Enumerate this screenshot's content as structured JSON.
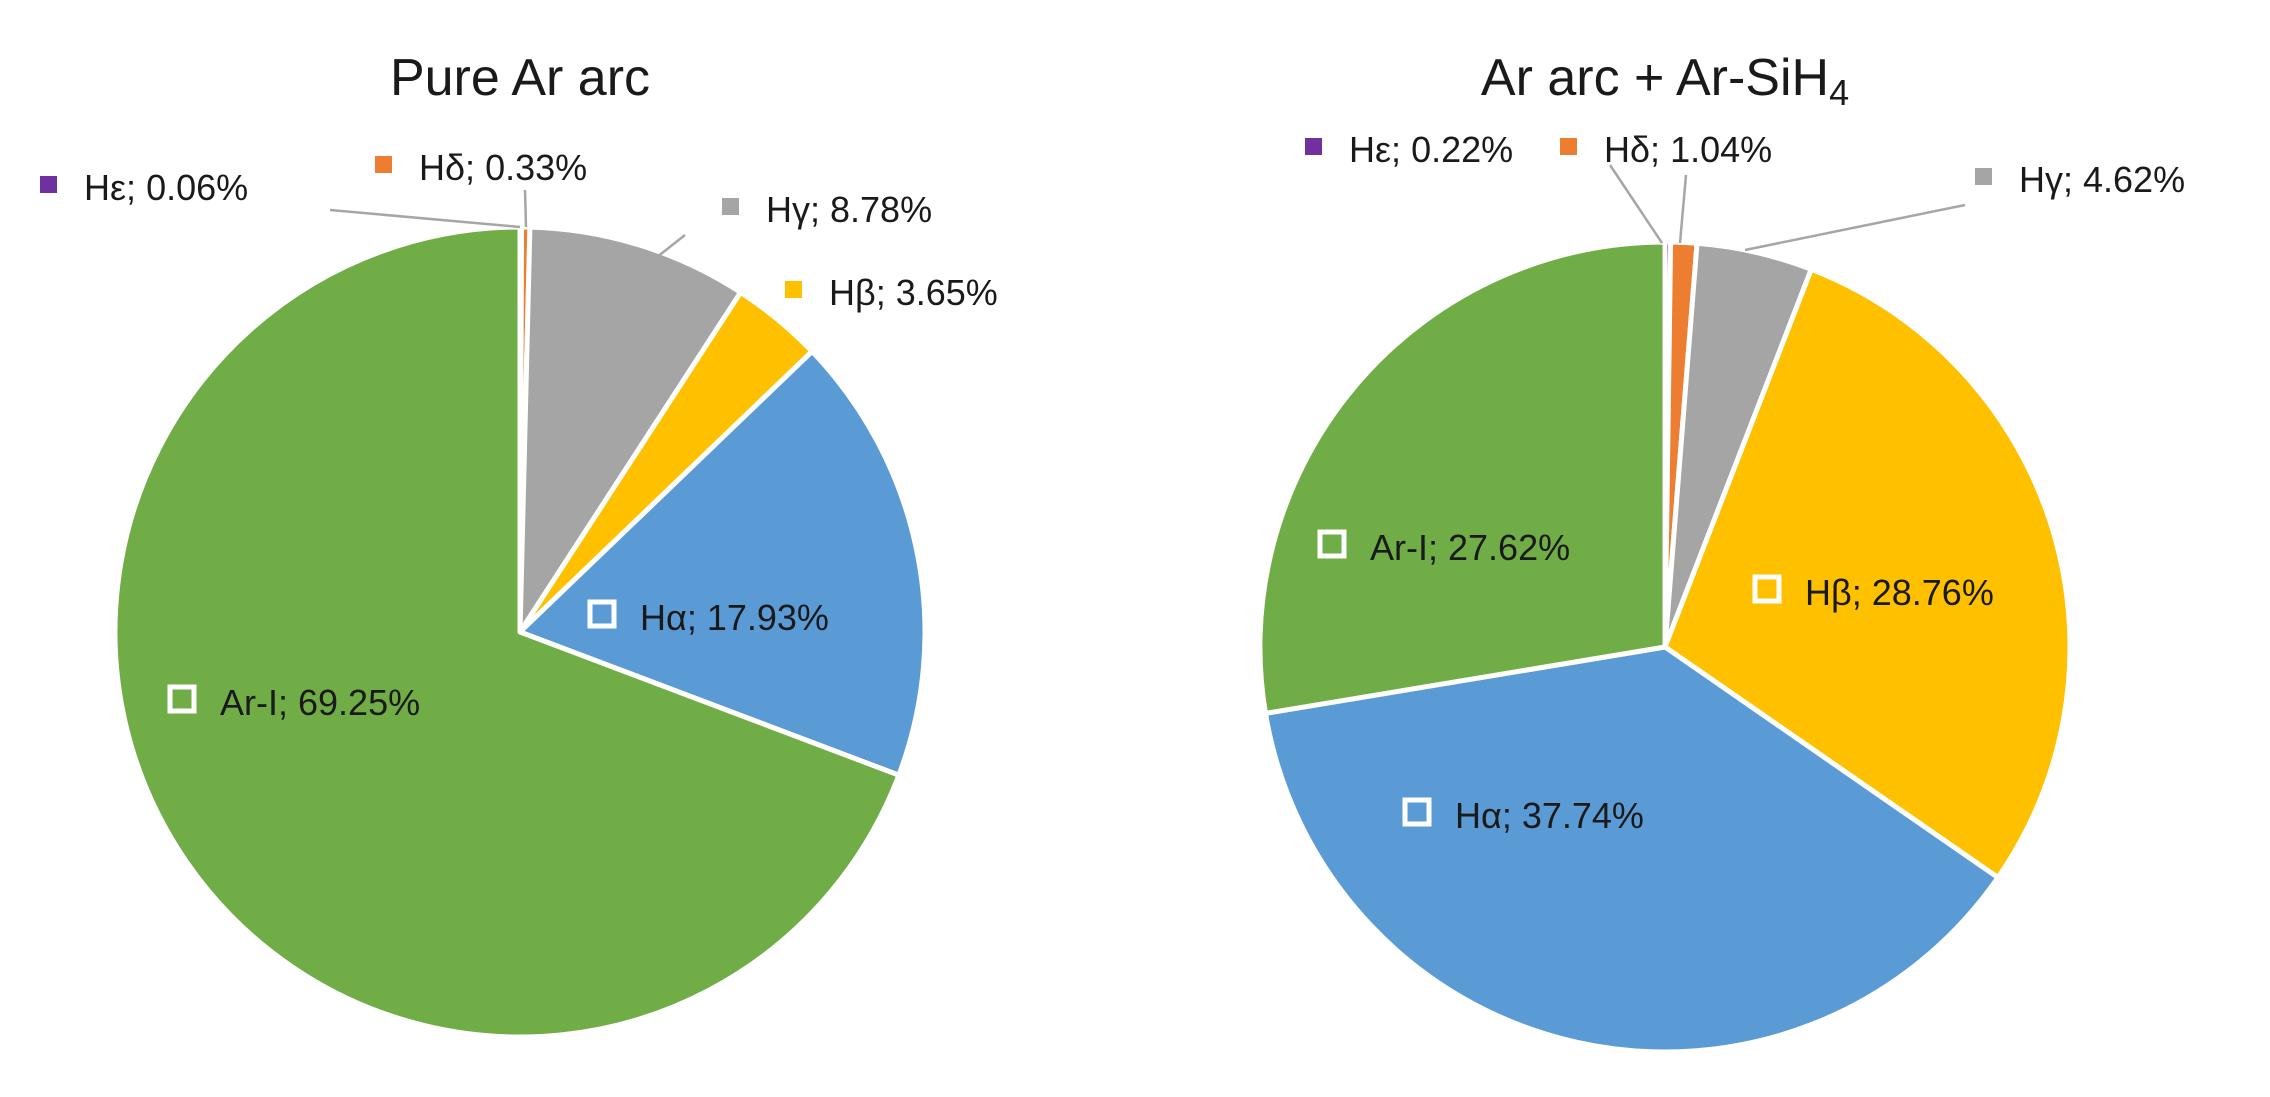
{
  "chart_data": [
    {
      "type": "pie",
      "title": "Pure Ar arc",
      "slices": [
        {
          "label": "Hε",
          "value": 0.06,
          "text": "0.06%",
          "color": "#7030A0"
        },
        {
          "label": "Hδ",
          "value": 0.33,
          "text": "0.33%",
          "color": "#ED7D31"
        },
        {
          "label": "Hγ",
          "value": 8.78,
          "text": "8.78%",
          "color": "#A5A5A5"
        },
        {
          "label": "Hβ",
          "value": 3.65,
          "text": "3.65%",
          "color": "#FFC000"
        },
        {
          "label": "Hα",
          "value": 17.93,
          "text": "17.93%",
          "color": "#5B9BD5"
        },
        {
          "label": "Ar-I",
          "value": 69.25,
          "text": "69.25%",
          "color": "#70AD47"
        }
      ]
    },
    {
      "type": "pie",
      "title": "Ar arc + Ar-SiH",
      "title_subscript": "4",
      "slices": [
        {
          "label": "Hε",
          "value": 0.22,
          "text": "0.22%",
          "color": "#7030A0"
        },
        {
          "label": "Hδ",
          "value": 1.04,
          "text": "1.04%",
          "color": "#ED7D31"
        },
        {
          "label": "Hγ",
          "value": 4.62,
          "text": "4.62%",
          "color": "#A5A5A5"
        },
        {
          "label": "Hβ",
          "value": 28.76,
          "text": "28.76%",
          "color": "#FFC000"
        },
        {
          "label": "Hα",
          "value": 37.74,
          "text": "37.74%",
          "color": "#5B9BD5"
        },
        {
          "label": "Ar-I",
          "value": 27.62,
          "text": "27.62%",
          "color": "#70AD47"
        }
      ]
    }
  ]
}
